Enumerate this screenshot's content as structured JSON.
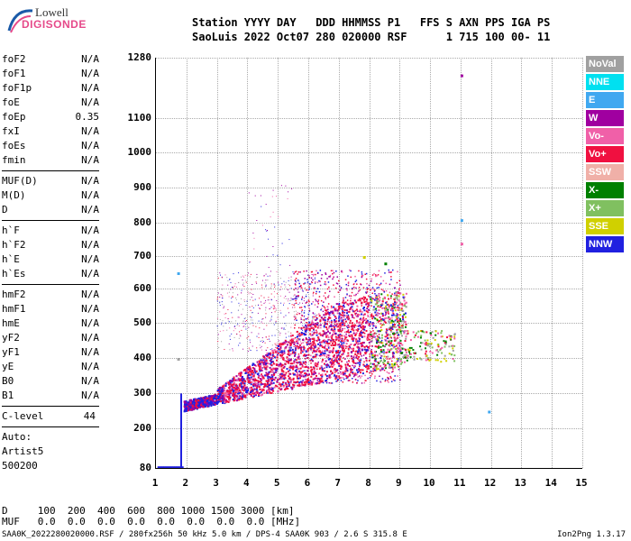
{
  "logo": {
    "line1": "Lowell",
    "line2": "DIGISONDE"
  },
  "header": {
    "line1": "Station YYYY DAY   DDD HHMMSS P1   FFS S AXN PPS IGA PS",
    "line2": "SaoLuis 2022 Oct07 280 020000 RSF      1 715 100 00- 11"
  },
  "params_group1": [
    {
      "name": "foF2",
      "value": "N/A"
    },
    {
      "name": "foF1",
      "value": "N/A"
    },
    {
      "name": "foF1p",
      "value": "N/A"
    },
    {
      "name": "foE",
      "value": "N/A"
    },
    {
      "name": "foEp",
      "value": "0.35"
    },
    {
      "name": "fxI",
      "value": "N/A"
    },
    {
      "name": "foEs",
      "value": "N/A"
    },
    {
      "name": "fmin",
      "value": "N/A"
    }
  ],
  "params_group2": [
    {
      "name": "MUF(D)",
      "value": "N/A"
    },
    {
      "name": "M(D)",
      "value": "N/A"
    },
    {
      "name": "D",
      "value": "N/A"
    }
  ],
  "params_group3": [
    {
      "name": "h`F",
      "value": "N/A"
    },
    {
      "name": "h`F2",
      "value": "N/A"
    },
    {
      "name": "h`E",
      "value": "N/A"
    },
    {
      "name": "h`Es",
      "value": "N/A"
    }
  ],
  "params_group4": [
    {
      "name": "hmF2",
      "value": "N/A"
    },
    {
      "name": "hmF1",
      "value": "N/A"
    },
    {
      "name": "hmE",
      "value": "N/A"
    },
    {
      "name": "yF2",
      "value": "N/A"
    },
    {
      "name": "yF1",
      "value": "N/A"
    },
    {
      "name": "yE",
      "value": "N/A"
    },
    {
      "name": "B0",
      "value": "N/A"
    },
    {
      "name": "B1",
      "value": "N/A"
    }
  ],
  "clevel": {
    "name": "C-level",
    "value": "44"
  },
  "auto": {
    "line1": "Auto:",
    "line2": "Artist5",
    "line3": "500200"
  },
  "chart_data": {
    "type": "scatter",
    "xlim": [
      1,
      15
    ],
    "ylim": [
      80,
      1280
    ],
    "xticks": [
      "1",
      "2",
      "3",
      "4",
      "5",
      "6",
      "7",
      "8",
      "9",
      "10",
      "11",
      "12",
      "13",
      "14",
      "15"
    ],
    "yticks": [
      "80",
      "200",
      "300",
      "400",
      "500",
      "600",
      "700",
      "800",
      "900",
      "1000",
      "1100",
      "1280"
    ],
    "legend": [
      {
        "label": "NoVal",
        "color": "#a0a0a0"
      },
      {
        "label": "NNE",
        "color": "#00e0f0"
      },
      {
        "label": "E",
        "color": "#40a8f0"
      },
      {
        "label": "W",
        "color": "#a000a0"
      },
      {
        "label": "Vo-",
        "color": "#f060a8"
      },
      {
        "label": "Vo+",
        "color": "#f01040"
      },
      {
        "label": "SSW",
        "color": "#f0b0a8"
      },
      {
        "label": "X-",
        "color": "#008000"
      },
      {
        "label": "X+",
        "color": "#80c060"
      },
      {
        "label": "SSE",
        "color": "#d0d000"
      },
      {
        "label": "NNW",
        "color": "#2020e0"
      }
    ]
  },
  "bottom": {
    "line1": "D     100  200  400  600  800 1000 1500 3000 [km]",
    "line2": "MUF   0.0  0.0  0.0  0.0  0.0  0.0  0.0  0.0 [MHz]",
    "footer": "SAA0K_2022280020000.RSF / 280fx256h 50 kHz 5.0 km / DPS-4 SAA0K 903 / 2.6 S 315.8 E",
    "version": "Ion2Png 1.3.17"
  }
}
